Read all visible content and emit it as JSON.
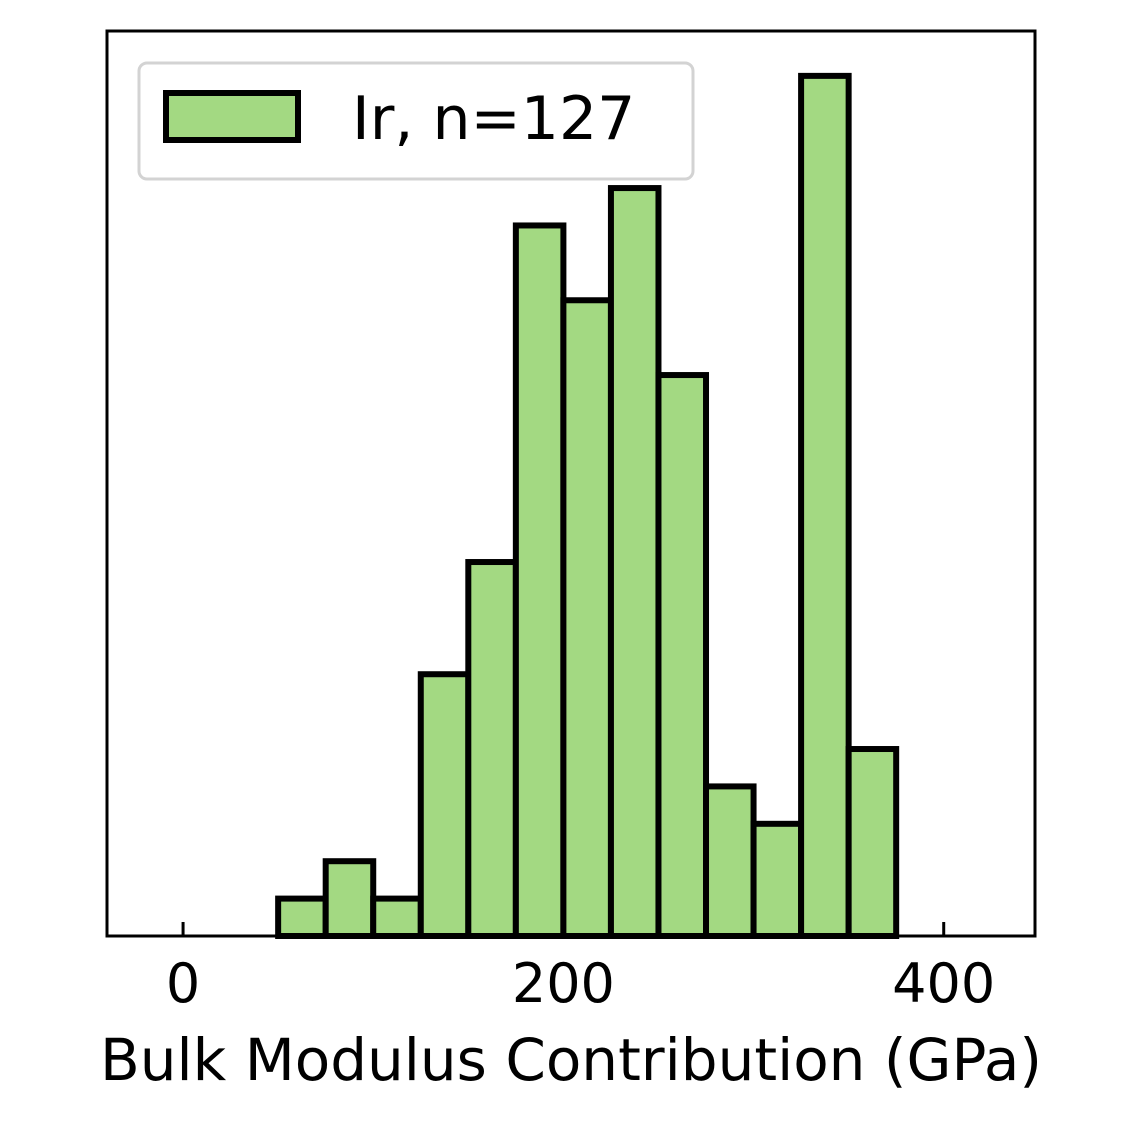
{
  "chart_data": {
    "type": "bar",
    "xlabel": "Bulk Modulus Contribution (GPa)",
    "ylabel": "",
    "title": "",
    "xlim": [
      -10,
      112
    ],
    "xticks": [
      0,
      200,
      400
    ],
    "yticks_shown": false,
    "ylim": [
      0,
      24.2
    ],
    "bin_width": 6.25,
    "series": [
      {
        "name": "Ir, n=127",
        "color": "#a3d982",
        "edgecolor": "#000000",
        "bins": [
          {
            "x0": 0,
            "x1": 6.25,
            "count": 0
          },
          {
            "x0": 6.25,
            "x1": 12.5,
            "count": 0
          },
          {
            "x0": 12.5,
            "x1": 18.75,
            "count": 1
          },
          {
            "x0": 18.75,
            "x1": 25,
            "count": 2
          },
          {
            "x0": 25,
            "x1": 31.25,
            "count": 1
          },
          {
            "x0": 31.25,
            "x1": 37.5,
            "count": 7
          },
          {
            "x0": 37.5,
            "x1": 43.75,
            "count": 10
          },
          {
            "x0": 43.75,
            "x1": 50,
            "count": 19
          },
          {
            "x0": 50,
            "x1": 56.25,
            "count": 17
          },
          {
            "x0": 56.25,
            "x1": 62.5,
            "count": 20
          },
          {
            "x0": 62.5,
            "x1": 68.75,
            "count": 15
          },
          {
            "x0": 68.75,
            "x1": 75,
            "count": 4
          },
          {
            "x0": 75,
            "x1": 81.25,
            "count": 3
          },
          {
            "x0": 81.25,
            "x1": 87.5,
            "count": 23
          },
          {
            "x0": 87.5,
            "x1": 93.75,
            "count": 5
          }
        ]
      }
    ],
    "legend": {
      "position": "upper-left"
    }
  }
}
